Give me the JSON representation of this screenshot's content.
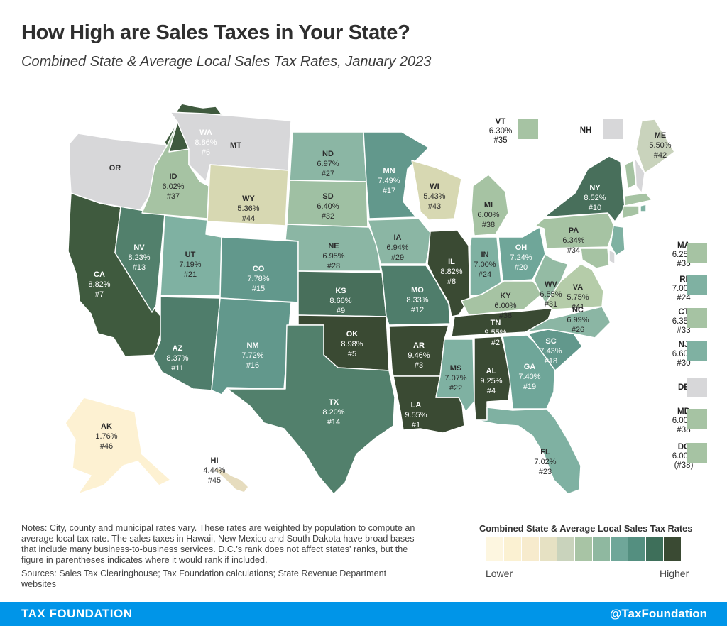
{
  "header": {
    "title": "How High are Sales Taxes in Your State?",
    "subtitle": "Combined State & Average Local Sales Tax Rates, January 2023"
  },
  "notes": {
    "note": "Notes: City, county and municipal rates vary. These rates are weighted by population to compute an average local tax rate. The sales taxes in Hawaii, New Mexico and South Dakota have broad bases that include many business-to-business services. D.C.'s rank does not affect states' ranks, but the figure in parentheses indicates where it would rank if included.",
    "sources": "Sources: Sales Tax Clearinghouse; Tax Foundation calculations; State Revenue Department websites"
  },
  "legend": {
    "title": "Combined State & Average Local Sales Tax Rates",
    "low": "Lower",
    "high": "Higher",
    "colors": [
      "#fdf6e0",
      "#fbf1d2",
      "#f7ebcd",
      "#e6e1c3",
      "#c9d3bc",
      "#a8c4a5",
      "#8fb8a0",
      "#6fa699",
      "#548f80",
      "#3e6f5a",
      "#3a4a33"
    ]
  },
  "footer": {
    "brand": "TAX FOUNDATION",
    "handle": "@TaxFoundation"
  },
  "states": [
    {
      "abbr": "WA",
      "rate": "8.86%",
      "rank": "#6",
      "color": "#3f5a3e"
    },
    {
      "abbr": "OR",
      "rate": "",
      "rank": "",
      "color": "#d7d7d9"
    },
    {
      "abbr": "CA",
      "rate": "8.82%",
      "rank": "#7",
      "color": "#3f5a3e"
    },
    {
      "abbr": "NV",
      "rate": "8.23%",
      "rank": "#13",
      "color": "#52806c"
    },
    {
      "abbr": "ID",
      "rate": "6.02%",
      "rank": "#37",
      "color": "#a6c3a3"
    },
    {
      "abbr": "MT",
      "rate": "",
      "rank": "",
      "color": "#d7d7d9"
    },
    {
      "abbr": "WY",
      "rate": "5.36%",
      "rank": "#44",
      "color": "#d7d8b2"
    },
    {
      "abbr": "UT",
      "rate": "7.19%",
      "rank": "#21",
      "color": "#7fb1a2"
    },
    {
      "abbr": "CO",
      "rate": "7.78%",
      "rank": "#15",
      "color": "#62988c"
    },
    {
      "abbr": "AZ",
      "rate": "8.37%",
      "rank": "#11",
      "color": "#4f7d6b"
    },
    {
      "abbr": "NM",
      "rate": "7.72%",
      "rank": "#16",
      "color": "#62988c"
    },
    {
      "abbr": "ND",
      "rate": "6.97%",
      "rank": "#27",
      "color": "#8bb6a4"
    },
    {
      "abbr": "SD",
      "rate": "6.40%",
      "rank": "#32",
      "color": "#9fc0a3"
    },
    {
      "abbr": "NE",
      "rate": "6.95%",
      "rank": "#28",
      "color": "#8bb6a4"
    },
    {
      "abbr": "KS",
      "rate": "8.66%",
      "rank": "#9",
      "color": "#486f5b"
    },
    {
      "abbr": "OK",
      "rate": "8.98%",
      "rank": "#5",
      "color": "#3a4a33"
    },
    {
      "abbr": "TX",
      "rate": "8.20%",
      "rank": "#14",
      "color": "#52806c"
    },
    {
      "abbr": "MN",
      "rate": "7.49%",
      "rank": "#17",
      "color": "#62988c"
    },
    {
      "abbr": "IA",
      "rate": "6.94%",
      "rank": "#29",
      "color": "#8bb6a4"
    },
    {
      "abbr": "MO",
      "rate": "8.33%",
      "rank": "#12",
      "color": "#4f7d6b"
    },
    {
      "abbr": "AR",
      "rate": "9.46%",
      "rank": "#3",
      "color": "#3a4a33"
    },
    {
      "abbr": "LA",
      "rate": "9.55%",
      "rank": "#1",
      "color": "#3a4a33"
    },
    {
      "abbr": "WI",
      "rate": "5.43%",
      "rank": "#43",
      "color": "#d7d8b2"
    },
    {
      "abbr": "IL",
      "rate": "8.82%",
      "rank": "#8",
      "color": "#3a4a33"
    },
    {
      "abbr": "MI",
      "rate": "6.00%",
      "rank": "#38",
      "color": "#a6c3a3"
    },
    {
      "abbr": "IN",
      "rate": "7.00%",
      "rank": "#24",
      "color": "#7fb1a2"
    },
    {
      "abbr": "OH",
      "rate": "7.24%",
      "rank": "#20",
      "color": "#6fa699"
    },
    {
      "abbr": "KY",
      "rate": "6.00%",
      "rank": "#38",
      "color": "#a6c3a3"
    },
    {
      "abbr": "TN",
      "rate": "9.55%",
      "rank": "#2",
      "color": "#3a4a33"
    },
    {
      "abbr": "MS",
      "rate": "7.07%",
      "rank": "#22",
      "color": "#7fb1a2"
    },
    {
      "abbr": "AL",
      "rate": "9.25%",
      "rank": "#4",
      "color": "#3a4a33"
    },
    {
      "abbr": "GA",
      "rate": "7.40%",
      "rank": "#19",
      "color": "#6fa699"
    },
    {
      "abbr": "FL",
      "rate": "7.02%",
      "rank": "#23",
      "color": "#7fb1a2"
    },
    {
      "abbr": "SC",
      "rate": "7.43%",
      "rank": "#18",
      "color": "#62988c"
    },
    {
      "abbr": "NC",
      "rate": "6.99%",
      "rank": "#26",
      "color": "#8bb6a4"
    },
    {
      "abbr": "VA",
      "rate": "5.75%",
      "rank": "#41",
      "color": "#b5cca9"
    },
    {
      "abbr": "WV",
      "rate": "6.55%",
      "rank": "#31",
      "color": "#94bba4"
    },
    {
      "abbr": "PA",
      "rate": "6.34%",
      "rank": "#34",
      "color": "#a6c3a3"
    },
    {
      "abbr": "NY",
      "rate": "8.52%",
      "rank": "#10",
      "color": "#486f5b"
    },
    {
      "abbr": "ME",
      "rate": "5.50%",
      "rank": "#42",
      "color": "#c9d3bc"
    },
    {
      "abbr": "AK",
      "rate": "1.76%",
      "rank": "#46",
      "color": "#fdf1d2"
    },
    {
      "abbr": "HI",
      "rate": "4.44%",
      "rank": "#45",
      "color": "#e6dcbe"
    }
  ],
  "callouts": [
    {
      "abbr": "VT",
      "rate": "6.30%",
      "rank": "#35",
      "color": "#a6c3a3"
    },
    {
      "abbr": "NH",
      "rate": "",
      "rank": "",
      "color": "#d7d7d9"
    },
    {
      "abbr": "MA",
      "rate": "6.25%",
      "rank": "#36",
      "color": "#a6c3a3"
    },
    {
      "abbr": "RI",
      "rate": "7.00%",
      "rank": "#24",
      "color": "#7fb1a2"
    },
    {
      "abbr": "CT",
      "rate": "6.35%",
      "rank": "#33",
      "color": "#a6c3a3"
    },
    {
      "abbr": "NJ",
      "rate": "6.60%",
      "rank": "#30",
      "color": "#7fb1a2"
    },
    {
      "abbr": "DE",
      "rate": "",
      "rank": "",
      "color": "#d7d7d9"
    },
    {
      "abbr": "MD",
      "rate": "6.00%",
      "rank": "#38",
      "color": "#a6c3a3"
    },
    {
      "abbr": "DC",
      "rate": "6.00%",
      "rank": "(#38)",
      "color": "#a6c3a3"
    }
  ]
}
